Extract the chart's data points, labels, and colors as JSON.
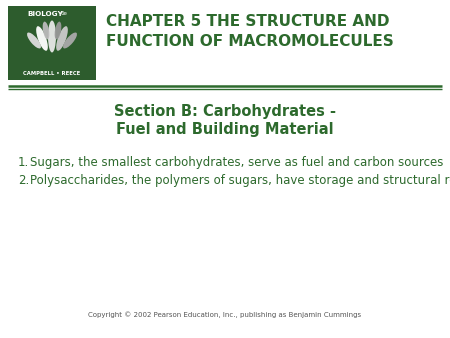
{
  "background_color": "#ffffff",
  "title_text_line1": "CHAPTER 5 THE STRUCTURE AND",
  "title_text_line2": "FUNCTION OF MACROMOLECULES",
  "title_color": "#2d6a2d",
  "section_title_line1": "Section B: Carbohydrates -",
  "section_title_line2": "Fuel and Building Material",
  "section_color": "#2d6a2d",
  "bullet1": "Sugars, the smallest carbohydrates, serve as fuel and carbon sources",
  "bullet2": "Polysaccharides, the polymers of sugars, have storage and structural roles",
  "bullet_color": "#2d6a2d",
  "copyright": "Copyright © 2002 Pearson Education, Inc., publishing as Benjamin Cummings",
  "copyright_color": "#555555",
  "logo_bg_color": "#2d5c2d",
  "logo_text_biology": "BIOLOGY",
  "logo_text_6e": "6e",
  "logo_text_campbell": "CAMPBELL • REECE",
  "separator_color": "#2d6a2d",
  "fig_width": 4.5,
  "fig_height": 3.38,
  "dpi": 100
}
